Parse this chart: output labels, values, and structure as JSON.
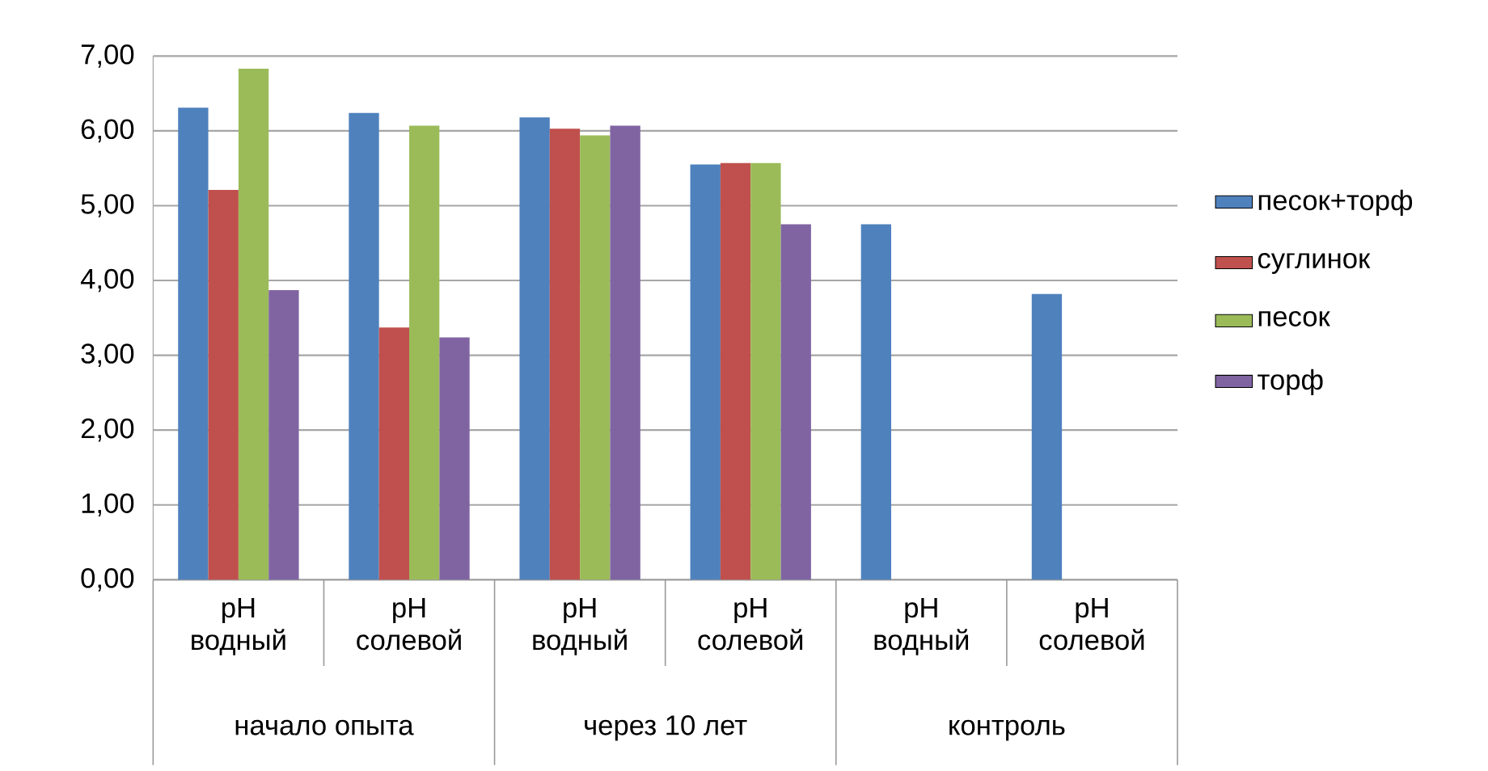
{
  "chart_data": {
    "type": "bar",
    "categories": [
      "pH водный",
      "pH солевой",
      "pH водный",
      "pH солевой",
      "pH водный",
      "pH солевой"
    ],
    "series": [
      {
        "name": "песок+торф",
        "color": "#4f81bd",
        "values": [
          6.31,
          6.24,
          6.18,
          5.55,
          4.75,
          3.82
        ]
      },
      {
        "name": "суглинок",
        "color": "#c0504d",
        "values": [
          5.21,
          3.37,
          6.03,
          5.57,
          null,
          null
        ]
      },
      {
        "name": "песок",
        "color": "#9bbb59",
        "values": [
          6.83,
          6.07,
          5.94,
          5.57,
          null,
          null
        ]
      },
      {
        "name": "торф",
        "color": "#8064a2",
        "values": [
          3.87,
          3.24,
          6.07,
          4.75,
          null,
          null
        ]
      }
    ],
    "annotations": [
      "начало опыта",
      "через 10 лет",
      "контроль"
    ],
    "ylim": [
      0,
      7
    ],
    "yticks": [
      {
        "value": 0,
        "label": "0,00"
      },
      {
        "value": 1,
        "label": "1,00"
      },
      {
        "value": 2,
        "label": "2,00"
      },
      {
        "value": 3,
        "label": "3,00"
      },
      {
        "value": 4,
        "label": "4,00"
      },
      {
        "value": 5,
        "label": "5,00"
      },
      {
        "value": 6,
        "label": "6,00"
      },
      {
        "value": 7,
        "label": "7,00"
      }
    ],
    "grid": "y",
    "legend": "right"
  }
}
